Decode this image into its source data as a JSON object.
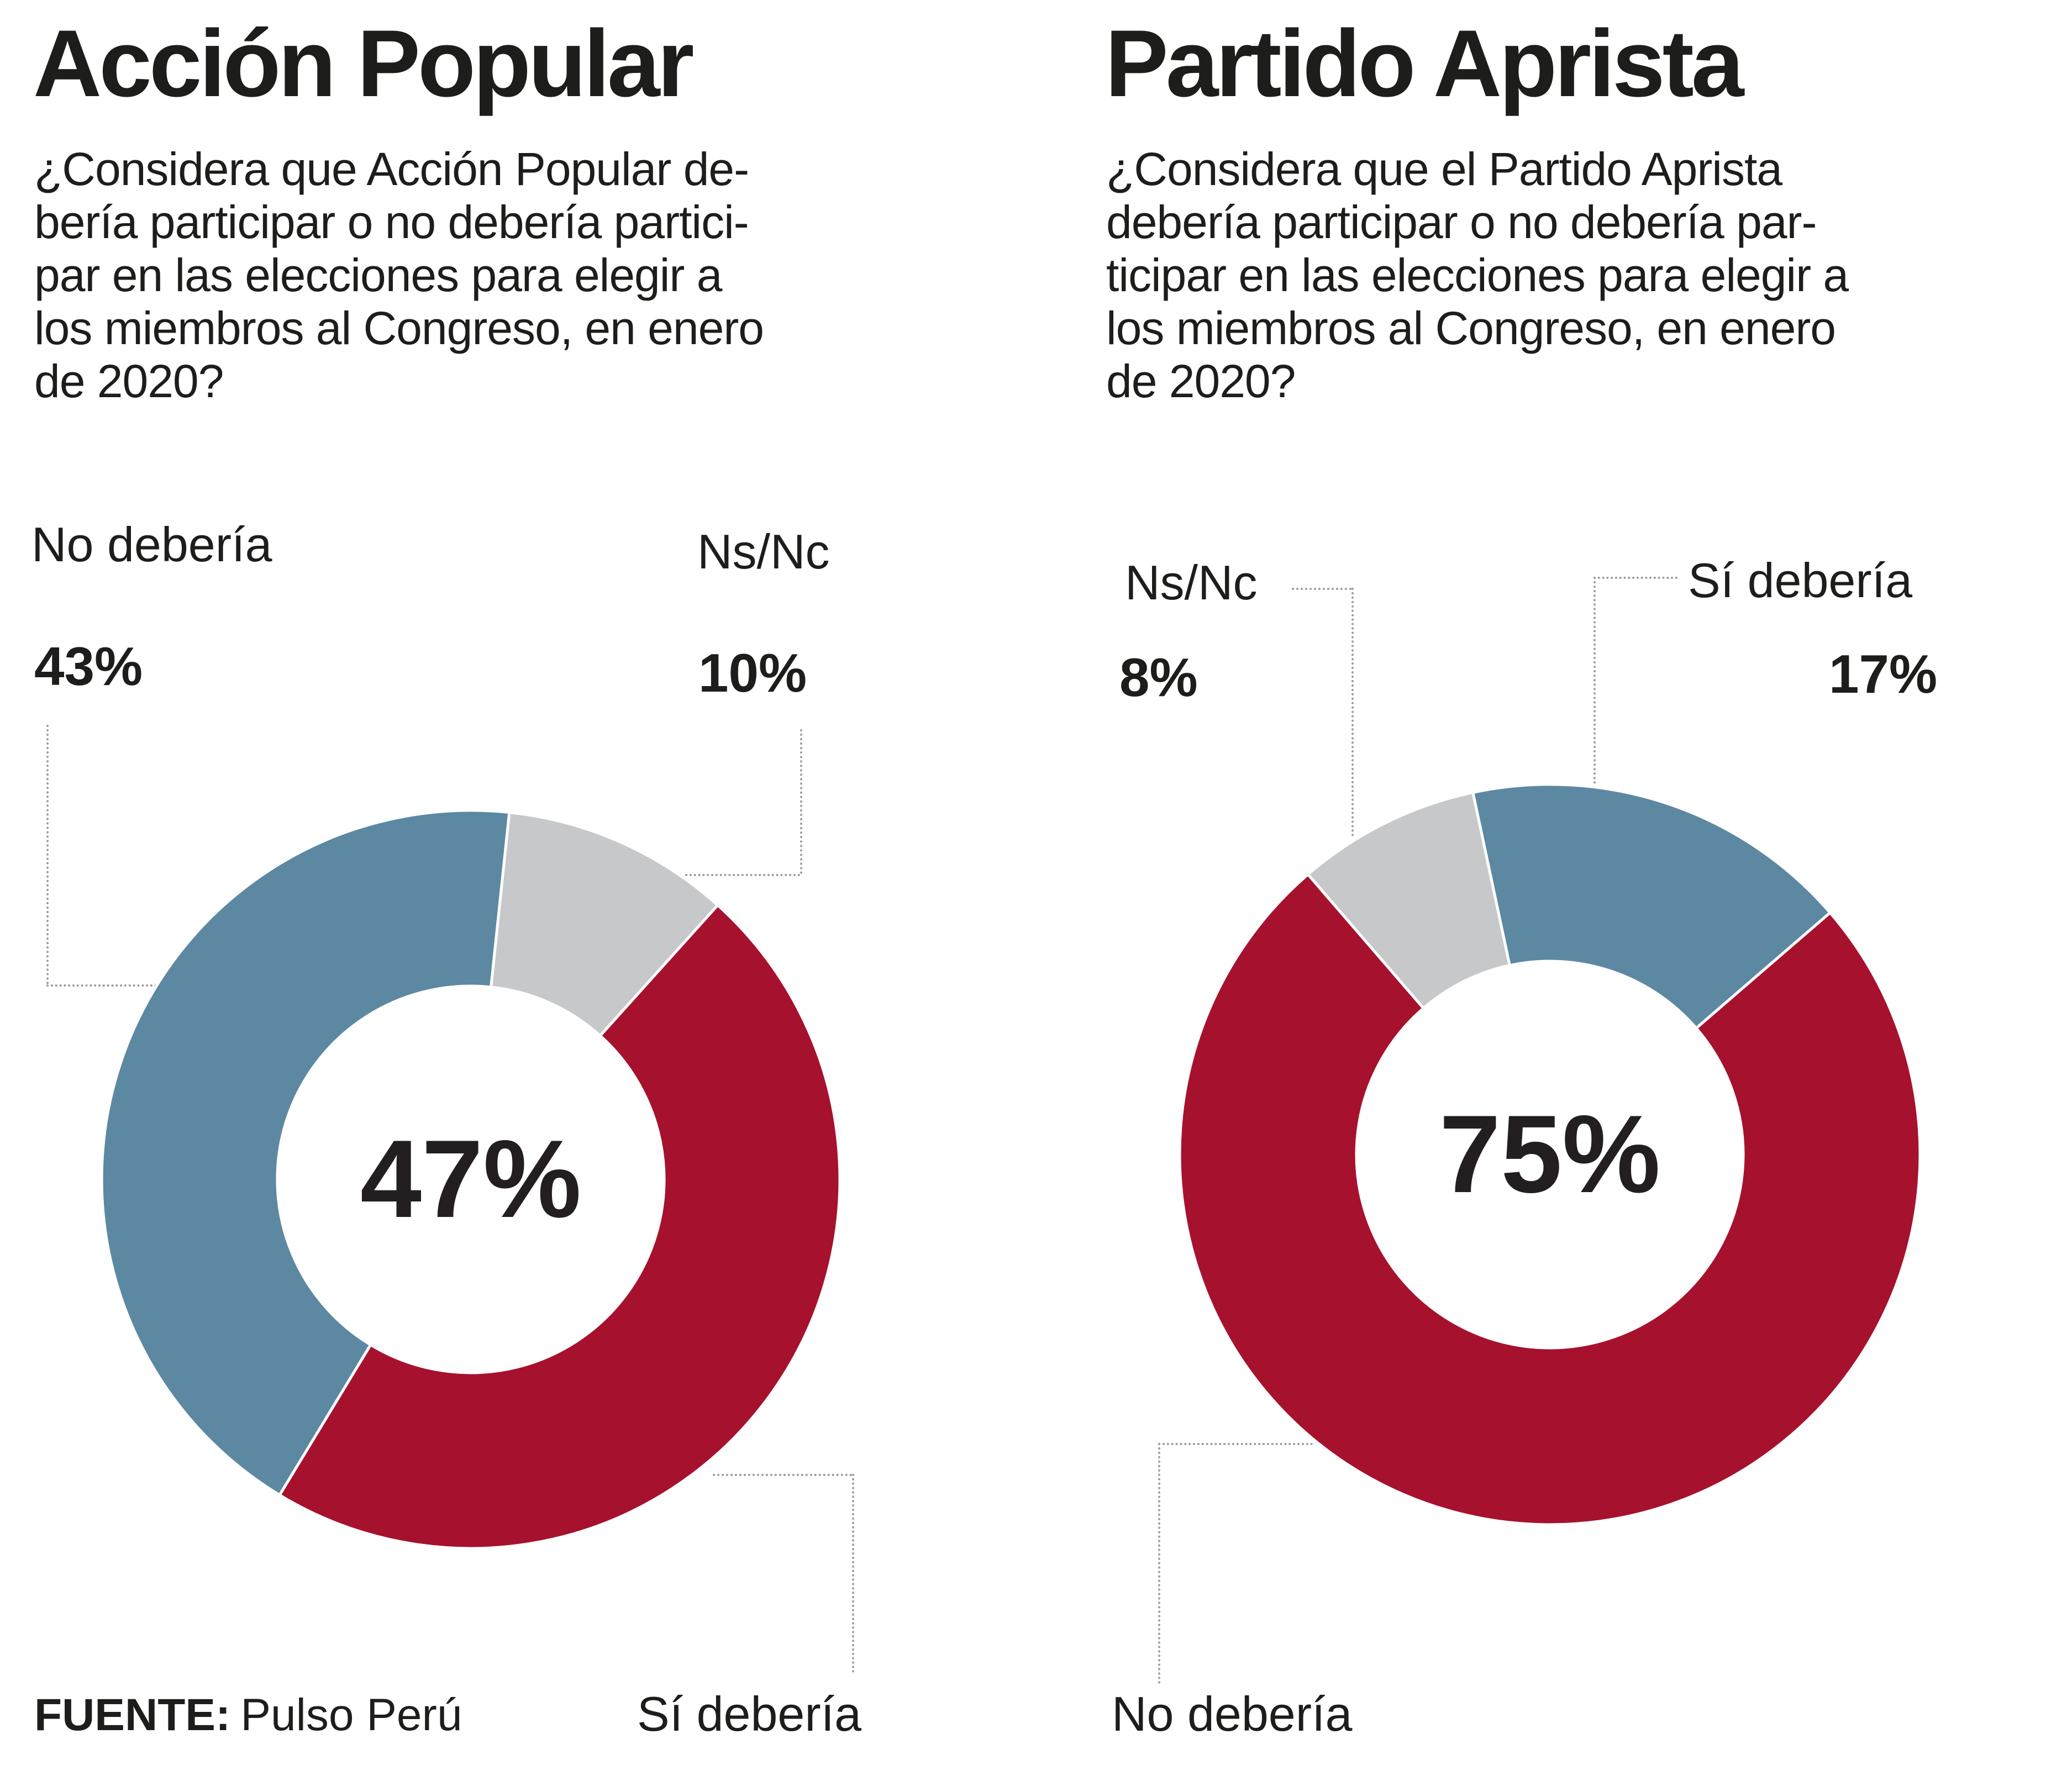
{
  "source": {
    "label": "FUENTE:",
    "value": "Pulso Perú"
  },
  "colors": {
    "red": "#a6122d",
    "blue": "#5d88a2",
    "gray": "#c7c8ca",
    "text": "#1d1d1b",
    "leader_line": "#9b9b9b",
    "background": "#ffffff"
  },
  "chart_data": [
    {
      "type": "pie",
      "variant": "donut",
      "title": "Acción Popular",
      "question": "¿Considera que Acción Popular debería participar o no debería participar en las elecciones para elegir a los miembros al Congreso, en enero de 2020?",
      "question_lines": [
        "¿Considera que Acción Popular de-",
        "bería participar o no debería partici-",
        "par en  las elecciones para elegir a",
        "los miembros al Congreso, en enero",
        "de 2020?"
      ],
      "center_label": "47%",
      "rotation": 6,
      "slices": [
        {
          "key": "ns-nc",
          "label": "Ns/Nc",
          "value": 10,
          "pct_label": "10%",
          "color": "#c7c8ca"
        },
        {
          "key": "si-deberia",
          "label": "Sí debería",
          "value": 47,
          "pct_label": "47%",
          "color": "#a6122d"
        },
        {
          "key": "no-deberia",
          "label": "No debería",
          "value": 43,
          "pct_label": "43%",
          "color": "#5d88a2"
        }
      ]
    },
    {
      "type": "pie",
      "variant": "donut",
      "title": "Partido Aprista",
      "question": "¿Considera que el Partido Aprista debería participar o no debería participar en las elecciones para elegir a los miembros al Congreso, en enero de 2020?",
      "question_lines": [
        "¿Considera que el Partido Aprista",
        "debería participar o no debería par-",
        "ticipar en las elecciones para elegir a",
        "los miembros al Congreso, en enero",
        "de 2020?"
      ],
      "center_label": "75%",
      "rotation": 348,
      "slices": [
        {
          "key": "si-deberia",
          "label": "Sí debería",
          "value": 17,
          "pct_label": "17%",
          "color": "#5d88a2"
        },
        {
          "key": "no-deberia",
          "label": "No debería",
          "value": 75,
          "pct_label": "75%",
          "color": "#a6122d"
        },
        {
          "key": "ns-nc",
          "label": "Ns/Nc",
          "value": 8,
          "pct_label": "8%",
          "color": "#c7c8ca"
        }
      ]
    }
  ]
}
